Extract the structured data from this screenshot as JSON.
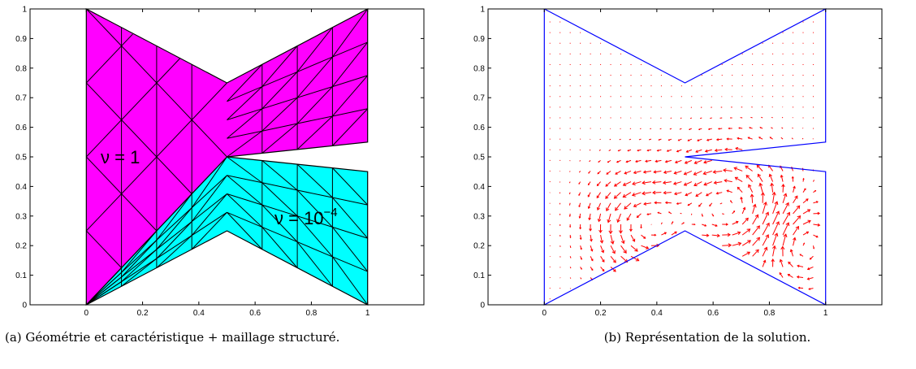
{
  "figures": [
    {
      "id": "a",
      "caption": "(a) Géométrie et caractéristique + maillage structuré.",
      "region_labels": {
        "top": {
          "text": "ν = 1"
        },
        "bottom": {
          "base": "ν = 10",
          "sup": "−4"
        }
      },
      "colors": {
        "top_region": "#ff00ff",
        "bottom_region": "#00ffff",
        "mesh": "#000000"
      }
    },
    {
      "id": "b",
      "caption": "(b) Représentation de la solution.",
      "colors": {
        "boundary": "#0000ff",
        "vectors": "#ff0000"
      }
    }
  ],
  "chart_data": [
    {
      "type": "mesh",
      "xlim": [
        -0.2,
        1.2
      ],
      "ylim": [
        0,
        1
      ],
      "xticks": [
        "0",
        "0.2",
        "0.4",
        "0.6",
        "0.8",
        "1"
      ],
      "yticks": [
        "0",
        "0.1",
        "0.2",
        "0.3",
        "0.4",
        "0.5",
        "0.6",
        "0.7",
        "0.8",
        "0.9",
        "1"
      ],
      "domain_outline": [
        [
          0,
          0
        ],
        [
          0,
          1
        ],
        [
          0.5,
          0.75
        ],
        [
          1,
          1
        ],
        [
          1,
          0.55
        ],
        [
          0.5,
          0.5
        ],
        [
          1,
          0.45
        ],
        [
          1,
          0
        ],
        [
          0.5,
          0.25
        ],
        [
          0,
          0
        ]
      ],
      "interface": [
        [
          0,
          0
        ],
        [
          0.5,
          0.5
        ]
      ]
    },
    {
      "type": "quiver",
      "xlim": [
        -0.2,
        1.2
      ],
      "ylim": [
        0,
        1
      ],
      "xticks": [
        "0",
        "0.2",
        "0.4",
        "0.6",
        "0.8",
        "1"
      ],
      "yticks": [
        "0",
        "0.1",
        "0.2",
        "0.3",
        "0.4",
        "0.5",
        "0.6",
        "0.7",
        "0.8",
        "0.9",
        "1"
      ],
      "domain_outline": [
        [
          0,
          1
        ],
        [
          0.5,
          0.75
        ],
        [
          1,
          1
        ],
        [
          1,
          0.55
        ],
        [
          0.5,
          0.5
        ],
        [
          1,
          0.45
        ],
        [
          1,
          0
        ],
        [
          0.5,
          0.25
        ],
        [
          0,
          0
        ],
        [
          0,
          1
        ]
      ],
      "vortices": [
        [
          0.35,
          0.28
        ],
        [
          0.65,
          0.33
        ],
        [
          0.93,
          0.2
        ]
      ]
    }
  ]
}
